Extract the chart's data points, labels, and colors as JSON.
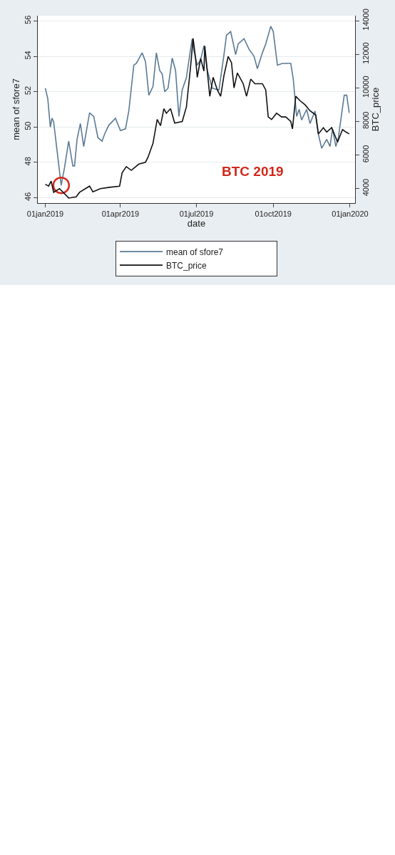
{
  "chart_data": {
    "type": "line",
    "xlabel": "date",
    "ylabel": "mean of sfore7",
    "y2label": "BTC_price",
    "annotations": [
      "BTC 2019"
    ],
    "xlim": [
      "2018-12-23",
      "2020-01-07"
    ],
    "xticks": [
      {
        "value": "2019-01-01",
        "label": "01jan2019"
      },
      {
        "value": "2019-04-01",
        "label": "01apr2019"
      },
      {
        "value": "2019-07-01",
        "label": "01jul2019"
      },
      {
        "value": "2019-10-01",
        "label": "01oct2019"
      },
      {
        "value": "2020-01-01",
        "label": "01jan2020"
      }
    ],
    "ylim": [
      45.7,
      56.3
    ],
    "yticks": [
      46,
      48,
      50,
      52,
      54,
      56
    ],
    "y2lim": [
      3140,
      14300
    ],
    "y2ticks": [
      4000,
      6000,
      8000,
      10000,
      12000,
      14000
    ],
    "grid": "y",
    "legend": "bottom",
    "line_style": "solid",
    "marker": "none",
    "series": [
      {
        "name": "mean of sfore7",
        "color": "#5b7a94",
        "x": [
          "2019-01-01",
          "2019-01-04",
          "2019-01-07",
          "2019-01-09",
          "2019-01-11",
          "2019-01-15",
          "2019-01-20",
          "2019-01-24",
          "2019-01-29",
          "2019-02-03",
          "2019-02-05",
          "2019-02-08",
          "2019-02-12",
          "2019-02-16",
          "2019-02-23",
          "2019-02-28",
          "2019-03-05",
          "2019-03-10",
          "2019-03-13",
          "2019-03-18",
          "2019-03-26",
          "2019-04-01",
          "2019-04-07",
          "2019-04-11",
          "2019-04-17",
          "2019-04-20",
          "2019-04-27",
          "2019-05-01",
          "2019-05-05",
          "2019-05-10",
          "2019-05-14",
          "2019-05-18",
          "2019-05-21",
          "2019-05-24",
          "2019-05-28",
          "2019-06-02",
          "2019-06-06",
          "2019-06-10",
          "2019-06-14",
          "2019-06-19",
          "2019-06-24",
          "2019-06-26",
          "2019-06-28",
          "2019-07-02",
          "2019-07-06",
          "2019-07-10",
          "2019-07-14",
          "2019-07-20",
          "2019-07-28",
          "2019-08-03",
          "2019-08-06",
          "2019-08-11",
          "2019-08-17",
          "2019-08-20",
          "2019-08-27",
          "2019-09-02",
          "2019-09-08",
          "2019-09-12",
          "2019-09-18",
          "2019-09-22",
          "2019-09-28",
          "2019-10-01",
          "2019-10-06",
          "2019-10-12",
          "2019-10-22",
          "2019-10-25",
          "2019-10-29",
          "2019-11-01",
          "2019-11-04",
          "2019-11-10",
          "2019-11-14",
          "2019-11-20",
          "2019-11-24",
          "2019-11-28",
          "2019-12-04",
          "2019-12-08",
          "2019-12-11",
          "2019-12-15",
          "2019-12-18",
          "2019-12-25",
          "2019-12-28",
          "2019-12-31"
        ],
        "values": [
          52.2,
          51.6,
          50.0,
          50.5,
          50.3,
          48.7,
          46.7,
          47.7,
          49.2,
          47.8,
          47.8,
          49.3,
          50.2,
          48.9,
          50.8,
          50.6,
          49.4,
          49.2,
          49.6,
          50.1,
          50.5,
          49.8,
          49.9,
          50.9,
          53.5,
          53.6,
          54.2,
          53.7,
          51.8,
          52.3,
          54.2,
          53.2,
          53.0,
          52.0,
          52.2,
          53.9,
          53.2,
          50.6,
          52.1,
          52.8,
          54.4,
          55.0,
          54.3,
          53.5,
          53.8,
          54.6,
          53.2,
          52.2,
          52.1,
          54.1,
          55.2,
          55.4,
          54.1,
          54.7,
          55.0,
          54.4,
          54.0,
          53.3,
          54.2,
          54.7,
          55.7,
          55.4,
          53.5,
          53.6,
          53.6,
          52.7,
          50.6,
          51.0,
          50.4,
          51.0,
          50.2,
          50.9,
          49.6,
          48.8,
          49.3,
          48.9,
          49.9,
          48.9,
          49.4,
          51.8,
          51.8,
          50.8
        ]
      },
      {
        "name": "BTC_price",
        "color": "#111111",
        "axis": "y2",
        "x": [
          "2019-01-01",
          "2019-01-05",
          "2019-01-08",
          "2019-01-11",
          "2019-01-18",
          "2019-01-29",
          "2019-02-07",
          "2019-02-11",
          "2019-02-23",
          "2019-02-27",
          "2019-03-08",
          "2019-03-19",
          "2019-03-31",
          "2019-04-03",
          "2019-04-08",
          "2019-04-14",
          "2019-04-23",
          "2019-05-01",
          "2019-05-04",
          "2019-05-10",
          "2019-05-15",
          "2019-05-19",
          "2019-05-23",
          "2019-05-26",
          "2019-05-31",
          "2019-06-05",
          "2019-06-14",
          "2019-06-19",
          "2019-06-24",
          "2019-06-27",
          "2019-06-30",
          "2019-07-02",
          "2019-07-06",
          "2019-07-10",
          "2019-07-11",
          "2019-07-17",
          "2019-07-21",
          "2019-07-26",
          "2019-07-30",
          "2019-08-03",
          "2019-08-08",
          "2019-08-12",
          "2019-08-15",
          "2019-08-19",
          "2019-08-26",
          "2019-08-30",
          "2019-09-04",
          "2019-09-09",
          "2019-09-18",
          "2019-09-22",
          "2019-09-25",
          "2019-09-29",
          "2019-10-05",
          "2019-10-11",
          "2019-10-16",
          "2019-10-22",
          "2019-10-24",
          "2019-10-28",
          "2019-11-02",
          "2019-11-08",
          "2019-11-14",
          "2019-11-21",
          "2019-11-24",
          "2019-11-30",
          "2019-12-04",
          "2019-12-10",
          "2019-12-14",
          "2019-12-17",
          "2019-12-23",
          "2019-12-27",
          "2019-12-31"
        ],
        "values": [
          4260,
          4150,
          4450,
          3780,
          4000,
          3440,
          3510,
          3780,
          4150,
          3810,
          4000,
          4080,
          4150,
          4940,
          5310,
          5090,
          5460,
          5570,
          5870,
          6700,
          8120,
          7750,
          8760,
          8490,
          8760,
          7900,
          8000,
          8870,
          11260,
          12950,
          11750,
          10630,
          11750,
          11000,
          12500,
          9500,
          10630,
          9880,
          9500,
          10740,
          11870,
          11500,
          10000,
          10890,
          10250,
          9500,
          10520,
          10250,
          10250,
          9880,
          8270,
          8120,
          8490,
          8270,
          8270,
          8000,
          7560,
          9500,
          9240,
          9000,
          8640,
          8380,
          7260,
          7630,
          7370,
          7630,
          7150,
          6770,
          7520,
          7370,
          7260
        ]
      }
    ]
  }
}
